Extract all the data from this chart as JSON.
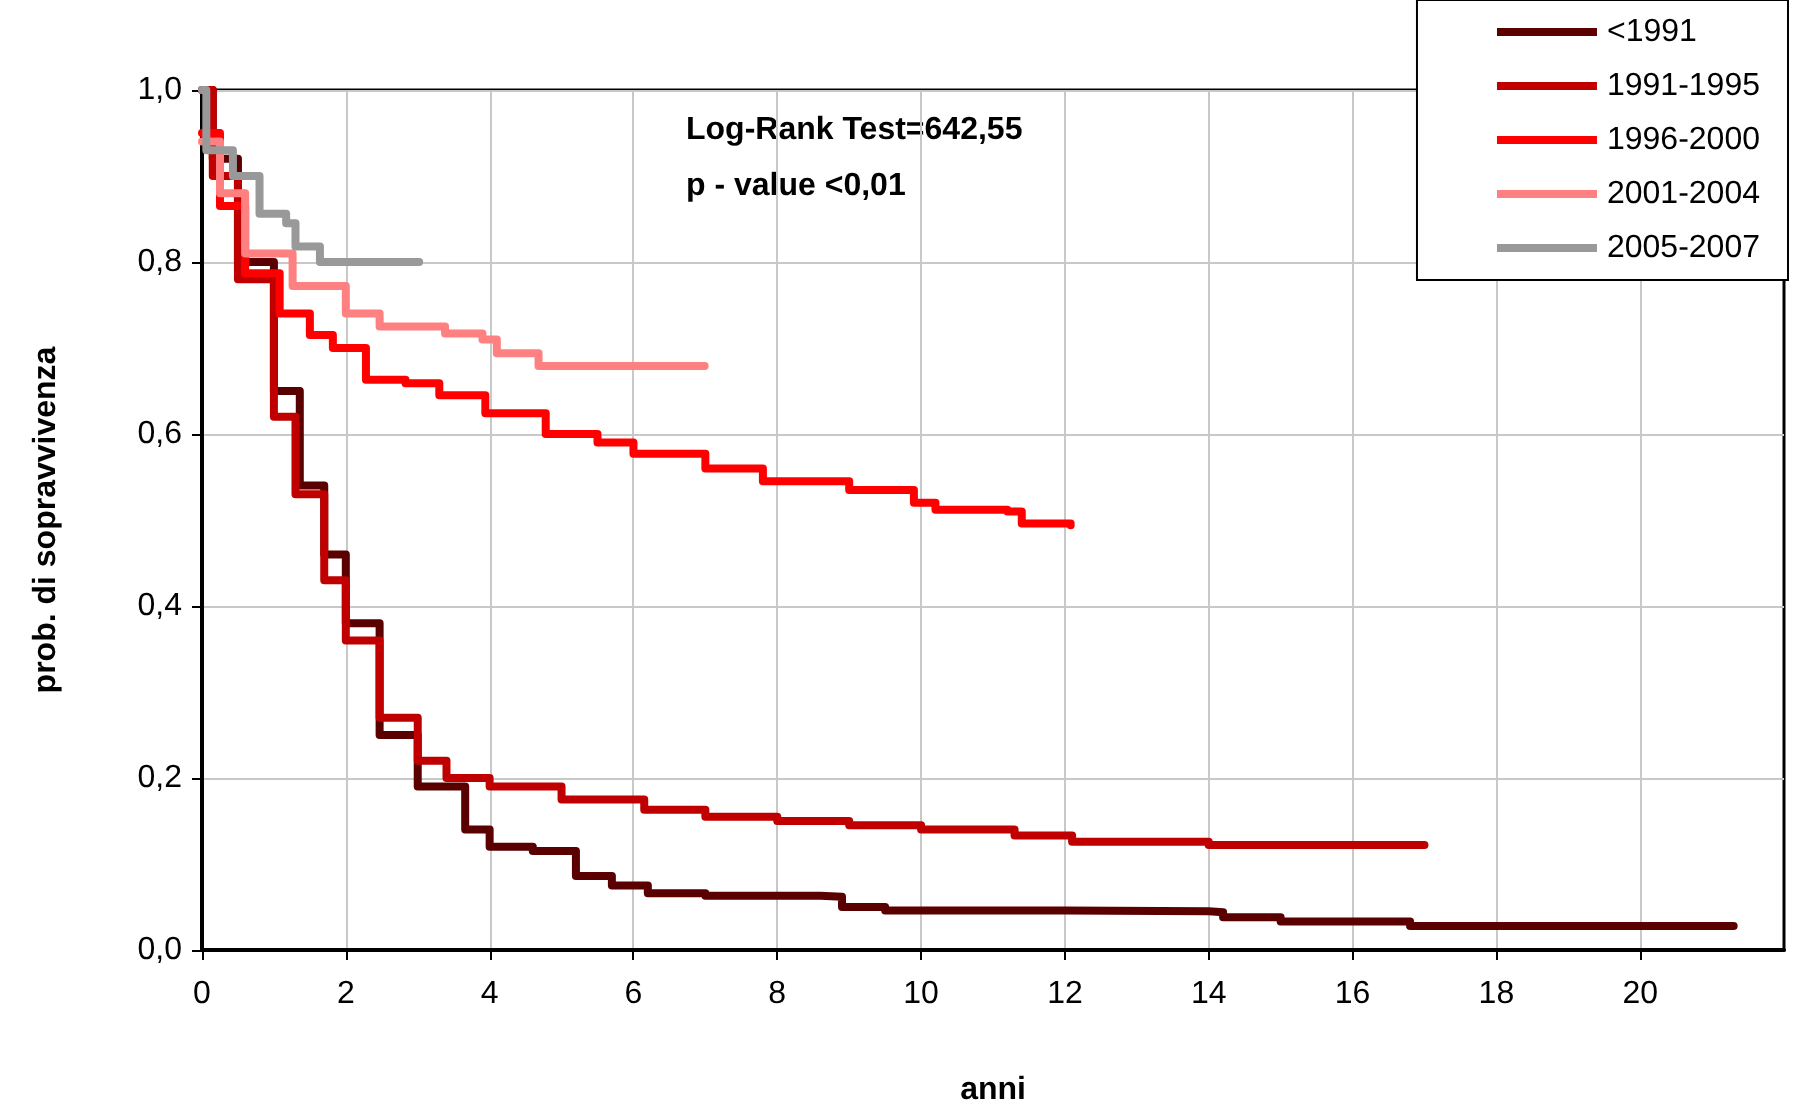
{
  "chart_data": {
    "type": "step",
    "xlabel": "anni",
    "ylabel": "prob. di sopravvivenza",
    "annotations": [
      "Log-Rank Test=642,55",
      "p - value <0,01"
    ],
    "xlim": [
      0,
      22
    ],
    "xticks": [
      0,
      2,
      4,
      6,
      8,
      10,
      12,
      14,
      16,
      18,
      20
    ],
    "ylim": [
      0,
      1
    ],
    "yticks": [
      {
        "value": 0,
        "label": "0,0"
      },
      {
        "value": 0.2,
        "label": "0,2"
      },
      {
        "value": 0.4,
        "label": "0,4"
      },
      {
        "value": 0.6,
        "label": "0,6"
      },
      {
        "value": 0.8,
        "label": "0,8"
      },
      {
        "value": 1,
        "label": "1,0"
      }
    ],
    "grid": true,
    "legend": "top right",
    "marker": "none",
    "line_style": "solid",
    "series": [
      {
        "name": "<1991",
        "color": "#5a0000",
        "x": [
          0,
          0.15,
          0.5,
          1.0,
          1.36,
          1.7,
          2.0,
          2.47,
          3.0,
          3.66,
          4.0,
          4.6,
          5.2,
          5.7,
          6.2,
          7.0,
          8.6,
          8.9,
          9.5,
          12.0,
          14.0,
          14.2,
          15.0,
          16.8,
          21.3
        ],
        "values": [
          1,
          0.92,
          0.8,
          0.65,
          0.54,
          0.46,
          0.38,
          0.25,
          0.19,
          0.14,
          0.12,
          0.115,
          0.086,
          0.075,
          0.066,
          0.063,
          0.062,
          0.05,
          0.046,
          0.045,
          0.044,
          0.038,
          0.033,
          0.028,
          0.027
        ]
      },
      {
        "name": "1991-1995",
        "color": "#c00000",
        "x": [
          0,
          0.15,
          0.5,
          1.0,
          1.3,
          1.7,
          2.0,
          2.47,
          3.0,
          3.4,
          4.0,
          5.0,
          6.15,
          7.0,
          8.0,
          9.0,
          10.0,
          11.3,
          12.1,
          14.0,
          17.0
        ],
        "values": [
          1,
          0.9,
          0.78,
          0.62,
          0.53,
          0.43,
          0.36,
          0.27,
          0.22,
          0.2,
          0.19,
          0.175,
          0.163,
          0.155,
          0.15,
          0.145,
          0.14,
          0.133,
          0.126,
          0.122,
          0.122
        ]
      },
      {
        "name": "1996-2000",
        "color": "#ff0000",
        "x": [
          0,
          0.25,
          0.6,
          1.08,
          1.5,
          1.82,
          2.28,
          2.83,
          3.3,
          3.94,
          4.78,
          5.5,
          6.0,
          7.0,
          7.8,
          9.0,
          9.9,
          10.2,
          11.2,
          11.4,
          12.08
        ],
        "values": [
          0.95,
          0.865,
          0.787,
          0.74,
          0.715,
          0.7,
          0.663,
          0.659,
          0.645,
          0.624,
          0.6,
          0.59,
          0.577,
          0.56,
          0.545,
          0.535,
          0.52,
          0.512,
          0.51,
          0.496,
          0.494
        ]
      },
      {
        "name": "2001-2004",
        "color": "#ff8080",
        "x": [
          0,
          0.25,
          0.6,
          1.26,
          2.0,
          2.47,
          3.38,
          3.9,
          4.1,
          4.68,
          6.99
        ],
        "values": [
          0.94,
          0.88,
          0.81,
          0.772,
          0.74,
          0.725,
          0.717,
          0.71,
          0.694,
          0.679,
          0.679
        ]
      },
      {
        "name": "2005-2007",
        "color": "#999999",
        "x": [
          0,
          0.06,
          0.43,
          0.8,
          1.17,
          1.3,
          1.64,
          3.02
        ],
        "values": [
          1,
          0.93,
          0.9,
          0.856,
          0.845,
          0.818,
          0.8,
          0.8
        ]
      }
    ]
  }
}
